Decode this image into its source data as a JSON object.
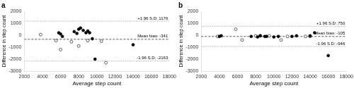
{
  "chart_data": [
    {
      "type": "scatter",
      "title": "a",
      "x_label": "Average step count",
      "y_label": "Difference in step count",
      "xlim": [
        2000,
        18000
      ],
      "ylim": [
        -3000,
        2000
      ],
      "xticks": [
        2000,
        4000,
        6000,
        8000,
        10000,
        12000,
        14000,
        16000,
        18000
      ],
      "yticks": [
        -3000,
        -2000,
        -1000,
        0,
        1000,
        2000
      ],
      "grid": false,
      "series": [
        {
          "color": "#000000",
          "marker": "filled_circle",
          "x": [
            5800,
            6000,
            6200,
            7500,
            7800,
            8000,
            8200,
            8500,
            8800,
            9000,
            9200,
            9500,
            9800,
            14000
          ],
          "values": [
            200,
            100,
            -100,
            300,
            150,
            500,
            600,
            400,
            200,
            350,
            200,
            -300,
            -2000,
            -800
          ]
        },
        {
          "color": "#000000",
          "marker": "open_circle",
          "x": [
            3800,
            5500,
            6000,
            7200,
            8000,
            9000,
            10500,
            11000
          ],
          "values": [
            50,
            -450,
            -1200,
            -550,
            -900,
            -450,
            -500,
            -2300
          ]
        }
      ],
      "annotations": [
        {
          "y": -341,
          "label": "Mean bias: -341",
          "color": "#555555",
          "line_style": "dashed"
        },
        {
          "y": 1176,
          "label": "+1.96 S.D: 1176",
          "color": "#999999",
          "line_style": "dotted"
        },
        {
          "y": -2163,
          "label": "-1.96 S.D: -2163",
          "color": "#999999",
          "line_style": "dotted"
        }
      ]
    },
    {
      "type": "scatter",
      "title": "b",
      "x_label": "Average step count",
      "y_label": "Difference in step count",
      "xlim": [
        2000,
        18000
      ],
      "ylim": [
        -3000,
        2000
      ],
      "xticks": [
        2000,
        4000,
        6000,
        8000,
        10000,
        12000,
        14000,
        16000,
        18000
      ],
      "yticks": [
        -3000,
        -2000,
        -1000,
        0,
        1000,
        2000
      ],
      "grid": false,
      "series": [
        {
          "color": "#000000",
          "marker": "filled_circle",
          "x": [
            4000,
            4200,
            7500,
            8200,
            8500,
            9000,
            9200,
            10000,
            10500,
            12000,
            12500,
            14000,
            14500,
            16000
          ],
          "values": [
            -100,
            -50,
            -100,
            -150,
            -50,
            -100,
            -100,
            -150,
            -100,
            -100,
            -50,
            -50,
            200,
            -1700
          ]
        },
        {
          "color": "#000000",
          "marker": "open_circle",
          "x": [
            3800,
            5800,
            6500,
            8000,
            8500,
            9500,
            10800,
            11500,
            13500,
            14000
          ],
          "values": [
            -100,
            500,
            -400,
            -50,
            -50,
            -50,
            -400,
            -100,
            -100,
            -100
          ]
        }
      ],
      "annotations": [
        {
          "y": -105,
          "label": "Mean bias: -105",
          "color": "#555555",
          "line_style": "dashed"
        },
        {
          "y": 750,
          "label": "+1.96 S.D: 750",
          "color": "#999999",
          "line_style": "dotted"
        },
        {
          "y": -946,
          "label": "-1.96 S.D: -946",
          "color": "#999999",
          "line_style": "dotted"
        }
      ]
    }
  ]
}
